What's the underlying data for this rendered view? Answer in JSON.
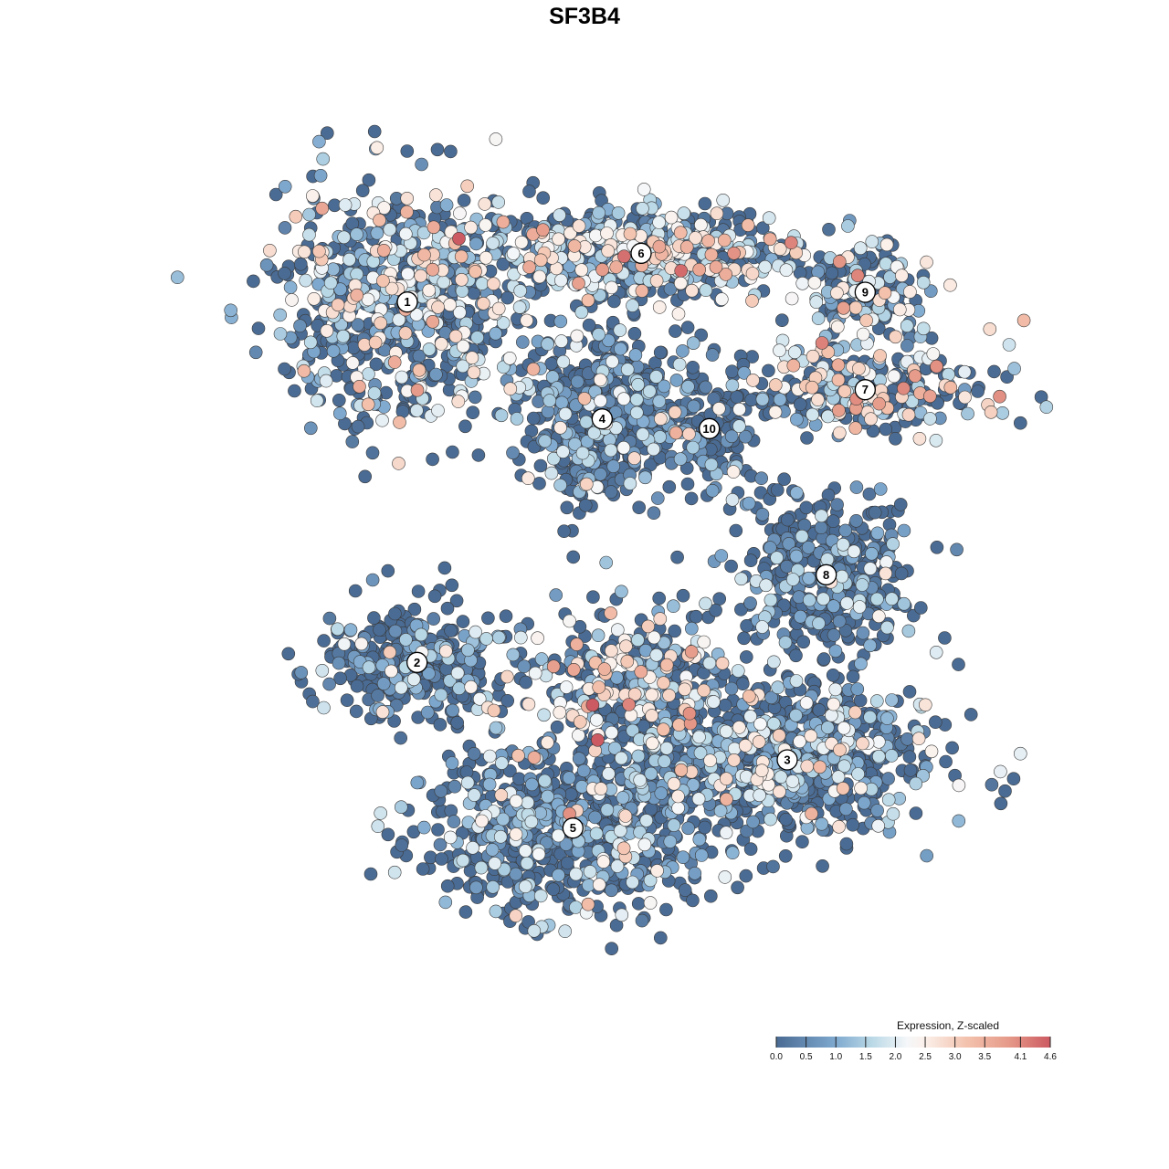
{
  "chart_data": {
    "type": "scatter",
    "title": "SF3B4",
    "xlabel": "",
    "ylabel": "",
    "grid": false,
    "xlim": [
      -45,
      45
    ],
    "ylim": [
      -45,
      45
    ],
    "point_count_estimate": 5000,
    "point_stroke_color": "#3a3a3a",
    "color_variable": "Expression, Z-scaled",
    "colorscale": {
      "range": [
        0,
        4.6
      ],
      "ticks": [
        0.0,
        0.5,
        1.0,
        1.5,
        2.0,
        2.5,
        3.0,
        3.5,
        4.1,
        4.6
      ],
      "tick_labels": [
        "0.0",
        "0.5",
        "1.0",
        "1.5",
        "2.0",
        "2.5",
        "3.0",
        "3.5",
        "4.1",
        "4.6"
      ],
      "stops": [
        {
          "value": 0.0,
          "color": "#4a6b93"
        },
        {
          "value": 1.0,
          "color": "#7fa9cf"
        },
        {
          "value": 1.6,
          "color": "#b9d8e6"
        },
        {
          "value": 2.2,
          "color": "#f5f7f9"
        },
        {
          "value": 2.5,
          "color": "#fbf0ea"
        },
        {
          "value": 3.2,
          "color": "#f3c2ad"
        },
        {
          "value": 3.9,
          "color": "#e69a89"
        },
        {
          "value": 4.6,
          "color": "#cc5a62"
        }
      ]
    },
    "legend": {
      "title": "Expression, Z-scaled",
      "position": "bottom-right"
    },
    "clusters": [
      {
        "label": "1",
        "x": -21,
        "y": 29,
        "sx": 9,
        "sy": 8,
        "n": 700,
        "mean_expr": 1.5
      },
      {
        "label": "6",
        "x": 3,
        "y": 34,
        "sx": 11,
        "sy": 3,
        "n": 600,
        "mean_expr": 1.8
      },
      {
        "label": "9",
        "x": 26,
        "y": 30,
        "sx": 4.5,
        "sy": 3,
        "n": 150,
        "mean_expr": 2.0
      },
      {
        "label": "7",
        "x": 26,
        "y": 20,
        "sx": 9,
        "sy": 3,
        "n": 300,
        "mean_expr": 1.9
      },
      {
        "label": "4",
        "x": -1,
        "y": 17,
        "sx": 5,
        "sy": 5.5,
        "n": 500,
        "mean_expr": 0.5
      },
      {
        "label": "10",
        "x": 10,
        "y": 16,
        "sx": 4,
        "sy": 5,
        "n": 150,
        "mean_expr": 0.4
      },
      {
        "label": "8",
        "x": 22,
        "y": 1,
        "sx": 6,
        "sy": 5,
        "n": 400,
        "mean_expr": 0.3
      },
      {
        "label": "2",
        "x": -20,
        "y": -8,
        "sx": 6,
        "sy": 4,
        "n": 350,
        "mean_expr": 0.5
      },
      {
        "label": "3",
        "x": 18,
        "y": -18,
        "sx": 10,
        "sy": 5,
        "n": 800,
        "mean_expr": 0.9
      },
      {
        "label": "5",
        "x": -4,
        "y": -25,
        "sx": 10,
        "sy": 6,
        "n": 700,
        "mean_expr": 0.8
      },
      {
        "label": "",
        "x": 2,
        "y": -10,
        "sx": 8,
        "sy": 5,
        "n": 350,
        "mean_expr": 1.9
      }
    ]
  }
}
